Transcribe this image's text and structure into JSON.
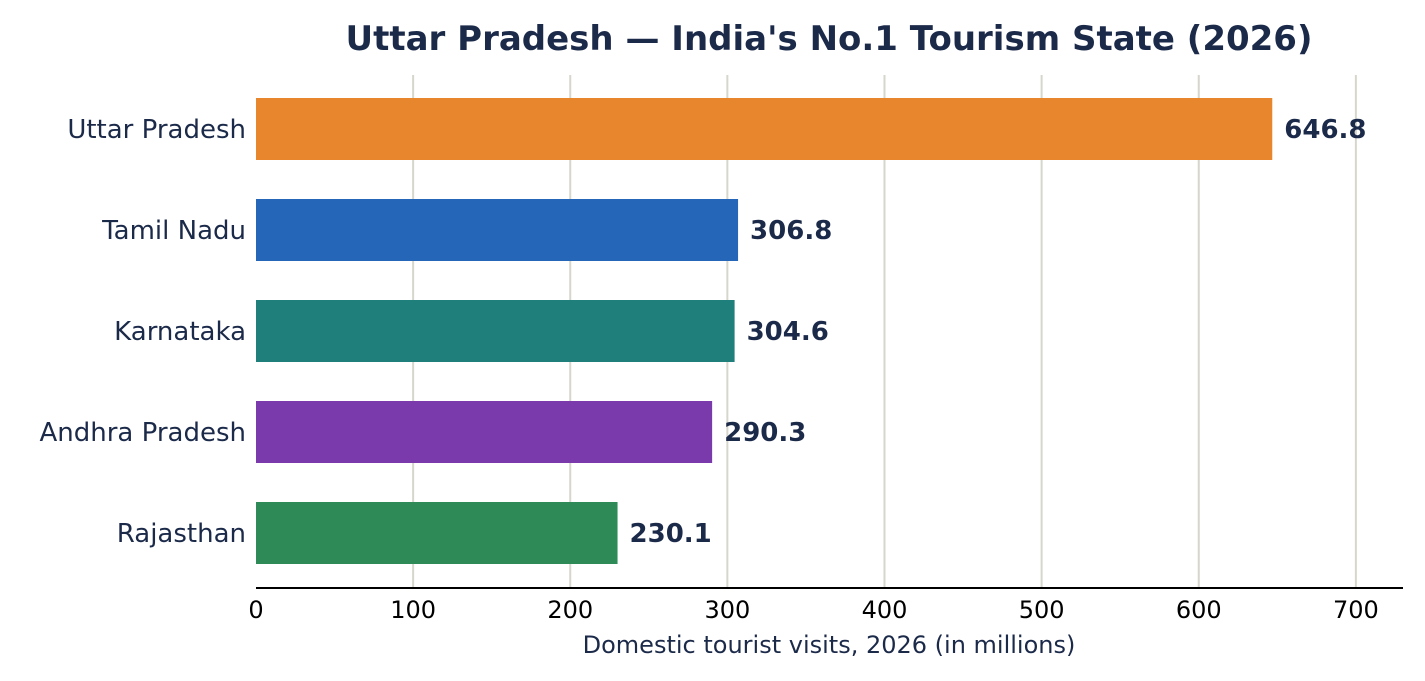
{
  "chart_data": {
    "type": "bar",
    "orientation": "horizontal",
    "title": "Uttar Pradesh — India's No.1 Tourism State (2026)",
    "xlabel": "Domestic tourist visits, 2026 (in millions)",
    "ylabel": "",
    "categories": [
      "Uttar Pradesh",
      "Tamil Nadu",
      "Karnataka",
      "Andhra Pradesh",
      "Rajasthan"
    ],
    "values": [
      646.8,
      306.8,
      304.6,
      290.3,
      230.1
    ],
    "value_labels": [
      "646.8",
      "306.8",
      "304.6",
      "290.3",
      "230.1"
    ],
    "bar_colors": [
      "#e8862d",
      "#2566b8",
      "#1f7f7a",
      "#7b3aab",
      "#2e8b57"
    ],
    "xlim": [
      0,
      730
    ],
    "xticks": [
      0,
      100,
      200,
      300,
      400,
      500,
      600,
      700
    ],
    "xtick_labels": [
      "0",
      "100",
      "200",
      "300",
      "400",
      "500",
      "600",
      "700"
    ],
    "grid": "vertical",
    "legend": "none",
    "colors": {
      "text": "#1c2a4a",
      "grid": "#d6d6cc",
      "axis": "#000000"
    }
  }
}
